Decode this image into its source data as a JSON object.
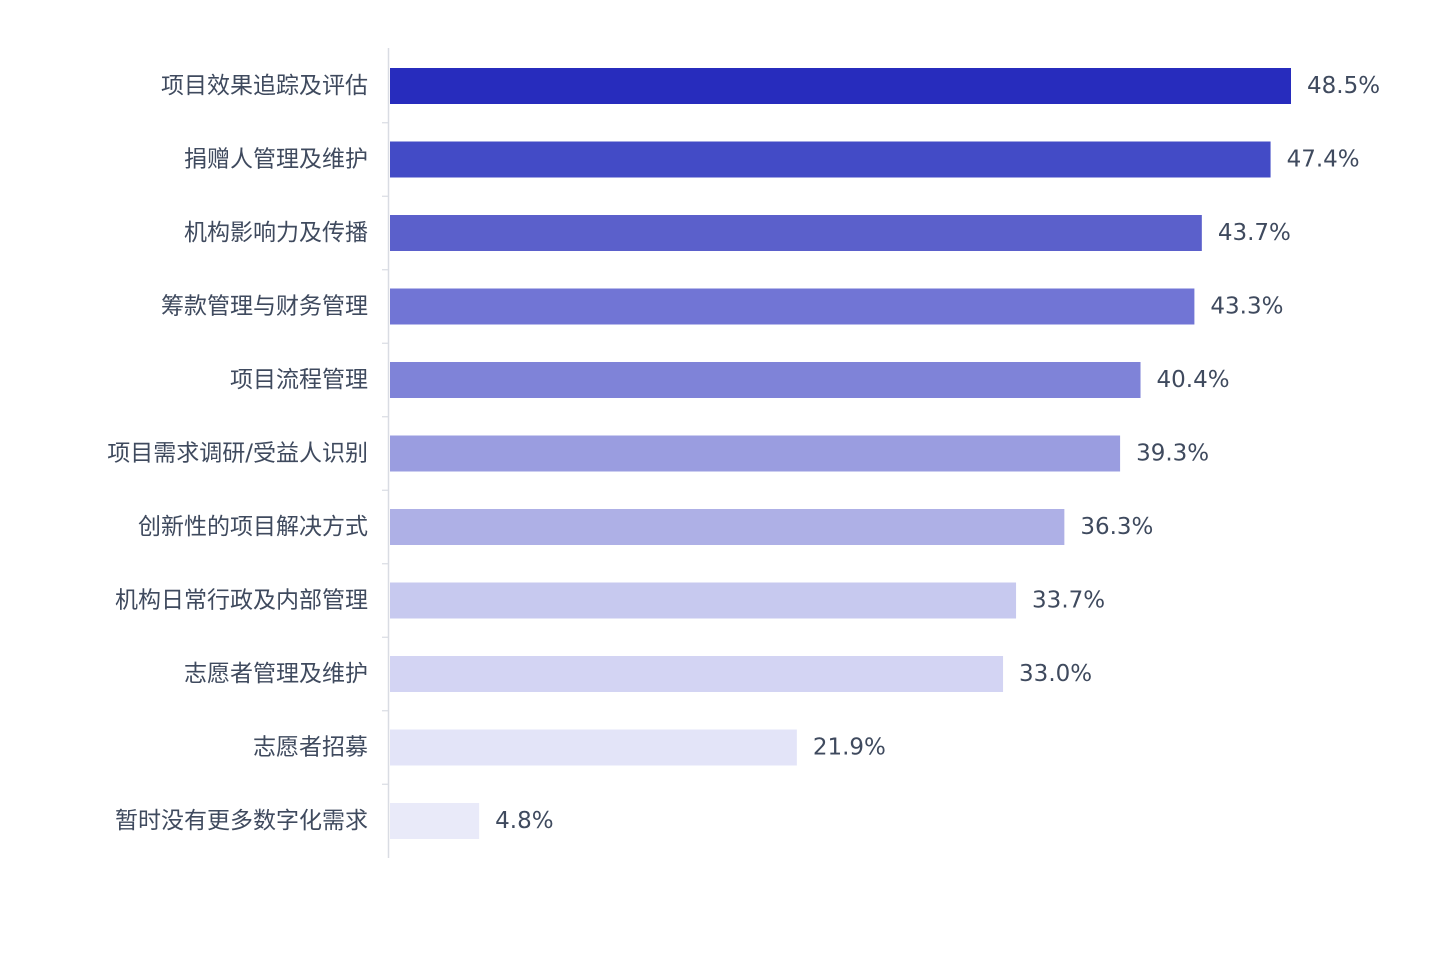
{
  "chart_data": {
    "type": "bar",
    "orientation": "horizontal",
    "categories": [
      "项目效果追踪及评估",
      "捐赠人管理及维护",
      "机构影响力及传播",
      "筹款管理与财务管理",
      "项目流程管理",
      "项目需求调研/受益人识别",
      "创新性的项目解决方式",
      "机构日常行政及内部管理",
      "志愿者管理及维护",
      "志愿者招募",
      "暂时没有更多数字化需求"
    ],
    "values": [
      48.5,
      47.4,
      43.7,
      43.3,
      40.4,
      39.3,
      36.3,
      33.7,
      33.0,
      21.9,
      4.8
    ],
    "value_labels": [
      "48.5%",
      "47.4%",
      "43.7%",
      "43.3%",
      "40.4%",
      "39.3%",
      "36.3%",
      "33.7%",
      "33.0%",
      "21.9%",
      "4.8%"
    ],
    "bar_colors": [
      "#272cbd",
      "#434bc6",
      "#5b60cb",
      "#7175d5",
      "#7f83d8",
      "#9a9de0",
      "#aeb0e6",
      "#c7c9ef",
      "#d3d4f3",
      "#e3e4f8",
      "#e9eaf9"
    ],
    "label_color": "#3f4a5e",
    "axis_color": "#d9dce3",
    "xlim": [
      0,
      48.5
    ],
    "grid": false,
    "legend": "none",
    "title": "",
    "xlabel": "",
    "ylabel": ""
  }
}
